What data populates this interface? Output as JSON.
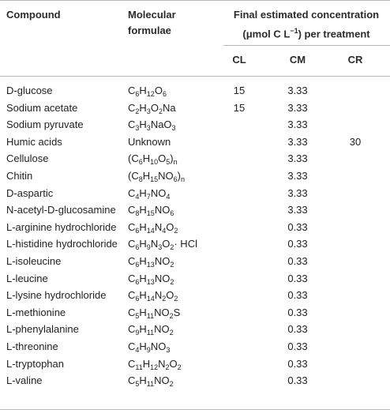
{
  "header": {
    "compound": "Compound",
    "formula_line1": "Molecular",
    "formula_line2": "formulae",
    "final_line1": "Final estimated concentration",
    "final_line2": "(μmol C L",
    "final_line2_sup": "−1",
    "final_line2_end": ") per treatment",
    "treatments": [
      "CL",
      "CM",
      "CR"
    ]
  },
  "rows": [
    {
      "compound": "D-glucose",
      "formula": [
        [
          "C",
          ""
        ],
        [
          "6",
          "s"
        ],
        [
          "H",
          ""
        ],
        [
          "12",
          "s"
        ],
        [
          "O",
          ""
        ],
        [
          "6",
          "s"
        ]
      ],
      "formula_text": "C6H12O6",
      "cl": "15",
      "cm": "3.33",
      "cr": ""
    },
    {
      "compound": "Sodium acetate",
      "formula": [
        [
          "C",
          ""
        ],
        [
          "2",
          "s"
        ],
        [
          "H",
          ""
        ],
        [
          "3",
          "s"
        ],
        [
          "O",
          ""
        ],
        [
          "2",
          "s"
        ],
        [
          "Na",
          ""
        ]
      ],
      "formula_text": "C2H3O2Na",
      "cl": "15",
      "cm": "3.33",
      "cr": ""
    },
    {
      "compound": "Sodium pyruvate",
      "formula": [
        [
          "C",
          ""
        ],
        [
          "3",
          "s"
        ],
        [
          "H",
          ""
        ],
        [
          "3",
          "s"
        ],
        [
          "NaO",
          ""
        ],
        [
          "3",
          "s"
        ]
      ],
      "formula_text": "C3H3NaO3",
      "cl": "",
      "cm": "3.33",
      "cr": ""
    },
    {
      "compound": "Humic acids",
      "formula": [
        [
          "Unknown",
          ""
        ]
      ],
      "formula_text": "Unknown",
      "cl": "",
      "cm": "3.33",
      "cr": "30"
    },
    {
      "compound": "Cellulose",
      "formula": [
        [
          "(C",
          ""
        ],
        [
          "6",
          "s"
        ],
        [
          "H",
          ""
        ],
        [
          "10",
          "s"
        ],
        [
          "O",
          ""
        ],
        [
          "5",
          "s"
        ],
        [
          ")",
          ""
        ],
        [
          "n",
          "s"
        ]
      ],
      "formula_text": "(C6H10O5)n",
      "cl": "",
      "cm": "3.33",
      "cr": ""
    },
    {
      "compound": "Chitin",
      "formula": [
        [
          "(C",
          ""
        ],
        [
          "8",
          "s"
        ],
        [
          "H",
          ""
        ],
        [
          "15",
          "s"
        ],
        [
          "NO",
          ""
        ],
        [
          "6",
          "s"
        ],
        [
          ")",
          ""
        ],
        [
          "n",
          "s"
        ]
      ],
      "formula_text": "(C8H15NO6)n",
      "cl": "",
      "cm": "3.33",
      "cr": ""
    },
    {
      "compound": "D-aspartic",
      "formula": [
        [
          "C",
          ""
        ],
        [
          "4",
          "s"
        ],
        [
          "H",
          ""
        ],
        [
          "7",
          "s"
        ],
        [
          "NO",
          ""
        ],
        [
          "4",
          "s"
        ]
      ],
      "formula_text": "C4H7NO4",
      "cl": "",
      "cm": "3.33",
      "cr": ""
    },
    {
      "compound": "N-acetyl-D-glucosamine",
      "formula": [
        [
          "C",
          ""
        ],
        [
          "8",
          "s"
        ],
        [
          "H",
          ""
        ],
        [
          "15",
          "s"
        ],
        [
          "NO",
          ""
        ],
        [
          "6",
          "s"
        ]
      ],
      "formula_text": "C8H15NO6",
      "cl": "",
      "cm": "3.33",
      "cr": ""
    },
    {
      "compound": "L-arginine hydrochloride",
      "formula": [
        [
          "C",
          ""
        ],
        [
          "6",
          "s"
        ],
        [
          "H",
          ""
        ],
        [
          "14",
          "s"
        ],
        [
          "N",
          ""
        ],
        [
          "4",
          "s"
        ],
        [
          "O",
          ""
        ],
        [
          "2",
          "s"
        ]
      ],
      "formula_text": "C6H14N4O2",
      "cl": "",
      "cm": "0.33",
      "cr": ""
    },
    {
      "compound": "L-histidine hydrochloride",
      "formula": [
        [
          "C",
          ""
        ],
        [
          "6",
          "s"
        ],
        [
          "H",
          ""
        ],
        [
          "9",
          "s"
        ],
        [
          "N",
          ""
        ],
        [
          "3",
          "s"
        ],
        [
          "O",
          ""
        ],
        [
          "2",
          "s"
        ],
        [
          "· HCl",
          ""
        ]
      ],
      "formula_text": "C6H9N3O2· HCl",
      "cl": "",
      "cm": "0.33",
      "cr": ""
    },
    {
      "compound": "L-isoleucine",
      "formula": [
        [
          "C",
          ""
        ],
        [
          "6",
          "s"
        ],
        [
          "H",
          ""
        ],
        [
          "13",
          "s"
        ],
        [
          "NO",
          ""
        ],
        [
          "2",
          "s"
        ]
      ],
      "formula_text": "C6H13NO2",
      "cl": "",
      "cm": "0.33",
      "cr": ""
    },
    {
      "compound": "L-leucine",
      "formula": [
        [
          "C",
          ""
        ],
        [
          "6",
          "s"
        ],
        [
          "H",
          ""
        ],
        [
          "13",
          "s"
        ],
        [
          "NO",
          ""
        ],
        [
          "2",
          "s"
        ]
      ],
      "formula_text": "C6H13NO2",
      "cl": "",
      "cm": "0.33",
      "cr": ""
    },
    {
      "compound": "L-lysine hydrochloride",
      "formula": [
        [
          "C",
          ""
        ],
        [
          "6",
          "s"
        ],
        [
          "H",
          ""
        ],
        [
          "14",
          "s"
        ],
        [
          "N",
          ""
        ],
        [
          "2",
          "s"
        ],
        [
          "O",
          ""
        ],
        [
          "2",
          "s"
        ]
      ],
      "formula_text": "C6H14N2O2",
      "cl": "",
      "cm": "0.33",
      "cr": ""
    },
    {
      "compound": "L-methionine",
      "formula": [
        [
          "C",
          ""
        ],
        [
          "5",
          "s"
        ],
        [
          "H",
          ""
        ],
        [
          "11",
          "s"
        ],
        [
          "NO",
          ""
        ],
        [
          "2",
          "s"
        ],
        [
          "S",
          ""
        ]
      ],
      "formula_text": "C5H11NO2S",
      "cl": "",
      "cm": "0.33",
      "cr": ""
    },
    {
      "compound": "L-phenylalanine",
      "formula": [
        [
          "C",
          ""
        ],
        [
          "9",
          "s"
        ],
        [
          "H",
          ""
        ],
        [
          "11",
          "s"
        ],
        [
          "NO",
          ""
        ],
        [
          "2",
          "s"
        ]
      ],
      "formula_text": "C9H11NO2",
      "cl": "",
      "cm": "0.33",
      "cr": ""
    },
    {
      "compound": "L-threonine",
      "formula": [
        [
          "C",
          ""
        ],
        [
          "4",
          "s"
        ],
        [
          "H",
          ""
        ],
        [
          "9",
          "s"
        ],
        [
          "NO",
          ""
        ],
        [
          "3",
          "s"
        ]
      ],
      "formula_text": "C4H9NO3",
      "cl": "",
      "cm": "0.33",
      "cr": ""
    },
    {
      "compound": "L-tryptophan",
      "formula": [
        [
          "C",
          ""
        ],
        [
          "11",
          "s"
        ],
        [
          "H",
          ""
        ],
        [
          "12",
          "s"
        ],
        [
          "N",
          ""
        ],
        [
          "2",
          "s"
        ],
        [
          "O",
          ""
        ],
        [
          "2",
          "s"
        ]
      ],
      "formula_text": "C11H12N2O2",
      "cl": "",
      "cm": "0.33",
      "cr": ""
    },
    {
      "compound": "L-valine",
      "formula": [
        [
          "C",
          ""
        ],
        [
          "5",
          "s"
        ],
        [
          "H",
          ""
        ],
        [
          "11",
          "s"
        ],
        [
          "NO",
          ""
        ],
        [
          "2",
          "s"
        ]
      ],
      "formula_text": "C5H11NO2",
      "cl": "",
      "cm": "0.33",
      "cr": ""
    }
  ],
  "colors": {
    "rule": "#b8b8b8",
    "text": "#222222"
  }
}
